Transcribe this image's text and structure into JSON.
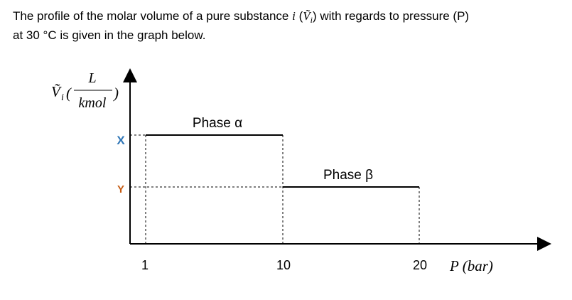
{
  "intro": {
    "segments": [
      "The profile of the molar volume of a pure substance ",
      "i",
      " (",
      "Ṽ",
      "i",
      ") with regards to pressure (P)",
      "at 30 °C is given in the graph below."
    ]
  },
  "graph": {
    "y_axis_label": {
      "symbol": "Ṽ",
      "subscript": "i",
      "open": "(",
      "numerator": "L",
      "denominator": "kmol",
      "close": ")"
    },
    "x_axis_label": "P (bar)",
    "x_ticks": [
      "1",
      "10",
      "20"
    ],
    "y_levels": [
      "X",
      "Y"
    ],
    "phases": [
      "Phase α",
      "Phase β"
    ]
  }
}
